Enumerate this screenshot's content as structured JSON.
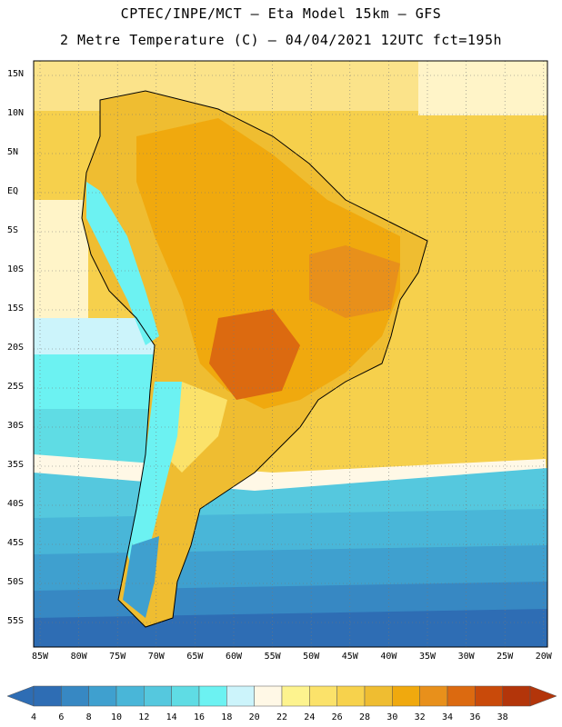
{
  "header": {
    "line1": "CPTEC/INPE/MCT –  Eta Model 15km – GFS",
    "line2": "2 Metre Temperature (C) – 04/04/2021 12UTC fct=195h"
  },
  "latitude_labels": [
    "15N",
    "10N",
    "5N",
    "EQ",
    "5S",
    "10S",
    "15S",
    "20S",
    "25S",
    "30S",
    "35S",
    "40S",
    "45S",
    "50S",
    "55S"
  ],
  "longitude_labels": [
    "85W",
    "80W",
    "75W",
    "70W",
    "65W",
    "60W",
    "55W",
    "50W",
    "45W",
    "40W",
    "35W",
    "30W",
    "25W",
    "20W"
  ],
  "colorbar": {
    "labels": [
      "4",
      "6",
      "8",
      "10",
      "12",
      "14",
      "16",
      "18",
      "20",
      "22",
      "24",
      "26",
      "28",
      "30",
      "32",
      "34",
      "36",
      "38"
    ],
    "colors": [
      "#2e6db4",
      "#3788c3",
      "#3fa0cf",
      "#49b6d8",
      "#55c8de",
      "#5fdce4",
      "#6cf2f2",
      "#ccf4fb",
      "#fff8e6",
      "#fdf38e",
      "#fbe26a",
      "#f7d24c",
      "#efbd31",
      "#f0a90e",
      "#e8901b",
      "#dc6a10",
      "#c94a0a",
      "#b3350a"
    ]
  }
}
